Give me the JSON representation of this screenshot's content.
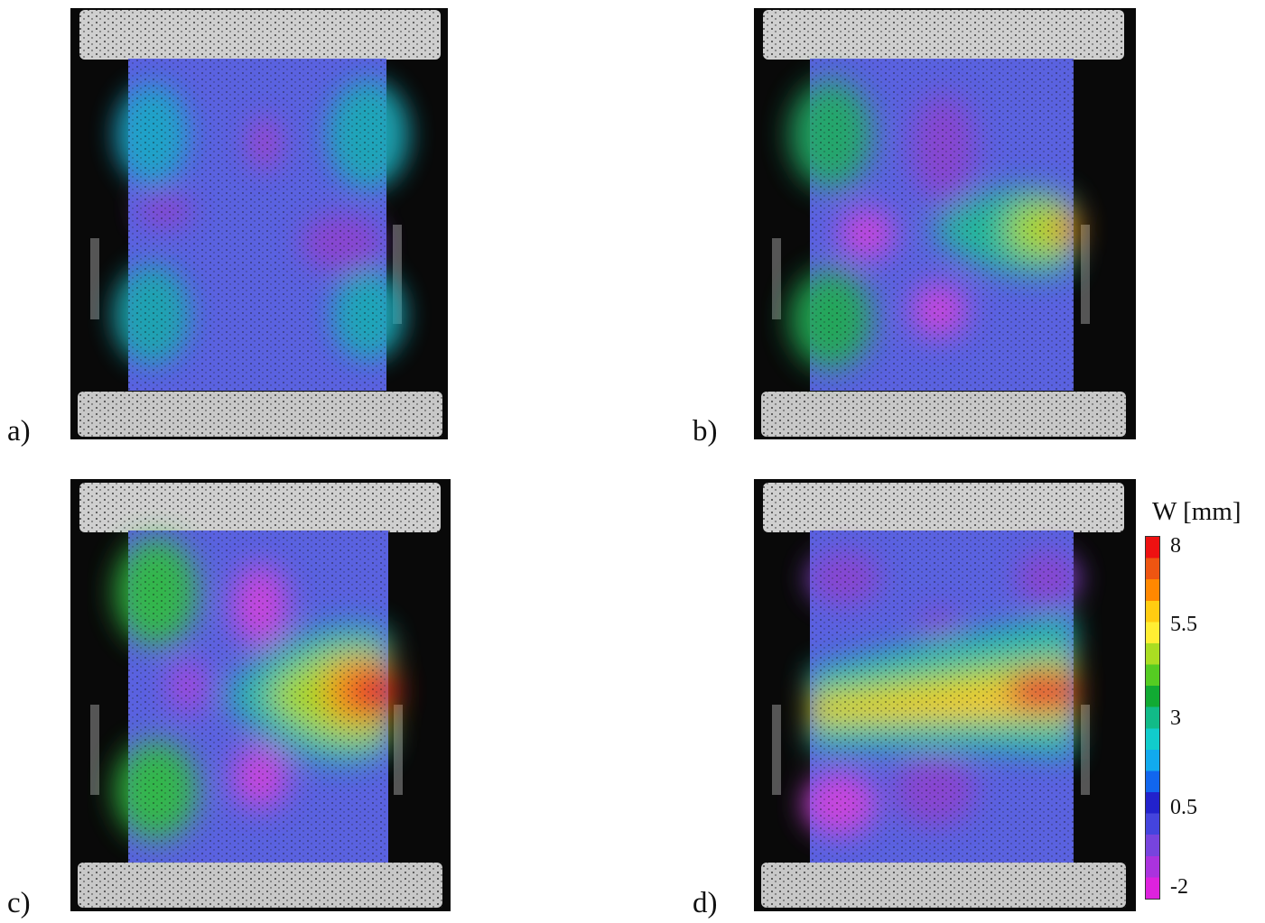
{
  "panels": [
    {
      "label": "a)"
    },
    {
      "label": "b)"
    },
    {
      "label": "c)"
    },
    {
      "label": "d)"
    }
  ],
  "legend": {
    "title": "W [mm]",
    "ticks": [
      "8",
      "5.5",
      "3",
      "0.5",
      "-2"
    ],
    "range": [
      -2,
      8
    ],
    "colors": [
      "#ee1111",
      "#ee5511",
      "#ff8800",
      "#ffcc11",
      "#ffee33",
      "#aadd22",
      "#55cc22",
      "#11aa33",
      "#11bb88",
      "#11cccc",
      "#11aaee",
      "#1166ee",
      "#2222cc",
      "#4444dd",
      "#7744dd",
      "#aa33dd",
      "#dd22dd"
    ]
  }
}
